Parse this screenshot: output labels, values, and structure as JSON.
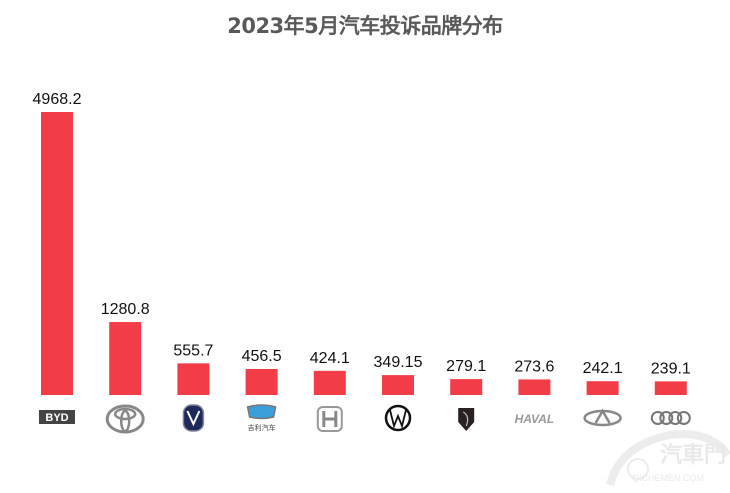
{
  "chart_data": {
    "type": "bar",
    "title": "2023年5月汽车投诉品牌分布",
    "categories": [
      "BYD",
      "Toyota",
      "Changan",
      "Geely",
      "Honda",
      "Volkswagen",
      "Peugeot",
      "Haval",
      "Chery",
      "Audi"
    ],
    "values": [
      4968.2,
      1280.8,
      555.7,
      456.5,
      424.1,
      349.15,
      279.1,
      273.6,
      242.1,
      239.1
    ],
    "data_labels": [
      "4968.2",
      "1280.8",
      "555.7",
      "456.5",
      "424.1",
      "349.15",
      "279.1",
      "273.6",
      "242.1",
      "239.1"
    ],
    "xlabel": "",
    "ylabel": "",
    "ylim": [
      0,
      4968.2
    ],
    "grid": false,
    "x_tick_style": "brand logos",
    "bar_color": "#F23C48"
  },
  "logo_text": {
    "byd": "BYD",
    "geely": "吉利汽车 GEELY AUTO",
    "haval": "HAVAL"
  },
  "watermark": {
    "name": "汽車門",
    "url": "QICHEMEN.COM"
  }
}
